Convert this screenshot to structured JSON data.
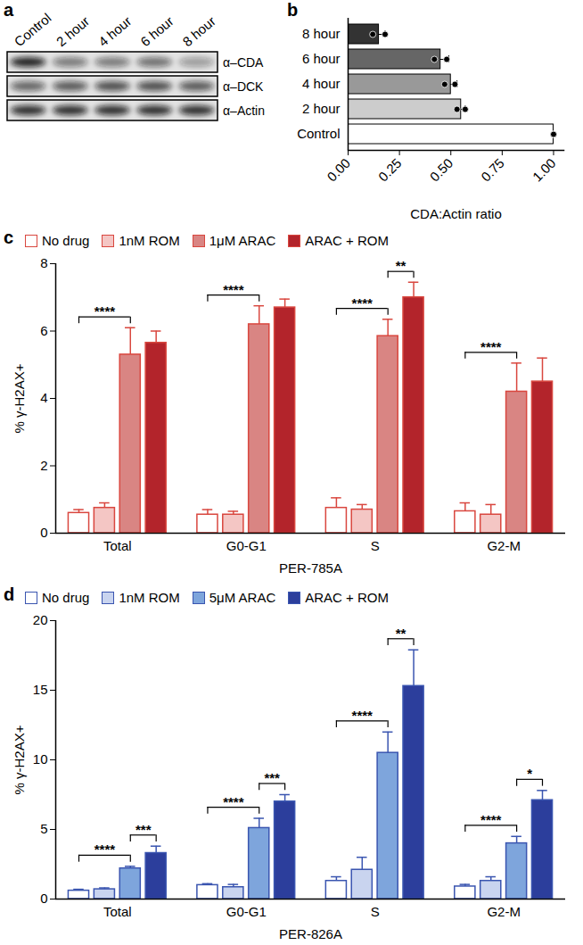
{
  "blot": {
    "panel_label": "a",
    "lanes": [
      "Control",
      "2 hour",
      "4 hour",
      "6 hour",
      "8 hour"
    ],
    "rows": [
      {
        "label": "α–CDA",
        "band_intensity": [
          0.9,
          0.5,
          0.5,
          0.55,
          0.35
        ]
      },
      {
        "label": "α–DCK",
        "band_intensity": [
          0.6,
          0.65,
          0.7,
          0.7,
          0.65
        ]
      },
      {
        "label": "α–Actin",
        "band_intensity": [
          0.85,
          0.85,
          0.85,
          0.85,
          0.85
        ]
      }
    ]
  },
  "chart_data": [
    {
      "type": "bar",
      "panel_label": "b",
      "orientation": "horizontal",
      "categories": [
        "8 hour",
        "6 hour",
        "4 hour",
        "2 hour",
        "Control"
      ],
      "values": [
        0.15,
        0.45,
        0.5,
        0.55,
        1.0
      ],
      "error": [
        0.03,
        0.04,
        0.03,
        0.02,
        0
      ],
      "points": [
        [
          0.12,
          0.18
        ],
        [
          0.42,
          0.48
        ],
        [
          0.47,
          0.52
        ],
        [
          0.53,
          0.57
        ],
        [
          1.0,
          1.0
        ]
      ],
      "colors": [
        "#333333",
        "#666666",
        "#999999",
        "#cccccc",
        "#ffffff"
      ],
      "x_label": "CDA:Actin ratio",
      "xlim": [
        0,
        1.05
      ],
      "xticks": [
        {
          "value": 0,
          "label": "0.00"
        },
        {
          "value": 0.25,
          "label": "0.25"
        },
        {
          "value": 0.5,
          "label": "0.50"
        },
        {
          "value": 0.75,
          "label": "0.75"
        },
        {
          "value": 1,
          "label": "1.00"
        }
      ]
    },
    {
      "type": "bar",
      "panel_label": "c",
      "legend": "top",
      "color": "#d9473f",
      "categories": [
        "Total",
        "G0-G1",
        "S",
        "G2-M"
      ],
      "series": [
        {
          "name": "No drug",
          "color": "#ffffff",
          "values": [
            0.6,
            0.55,
            0.75,
            0.65
          ],
          "error": [
            0.1,
            0.15,
            0.3,
            0.25
          ]
        },
        {
          "name": "1nM ROM",
          "color": "#f4c6c4",
          "values": [
            0.75,
            0.55,
            0.7,
            0.55
          ],
          "error": [
            0.15,
            0.1,
            0.15,
            0.3
          ]
        },
        {
          "name": "1μM ARAC",
          "color": "#d98583",
          "values": [
            5.3,
            6.2,
            5.85,
            4.2
          ],
          "error": [
            0.8,
            0.55,
            0.5,
            0.85
          ]
        },
        {
          "name": "ARAC + ROM",
          "color": "#b3242b",
          "values": [
            5.65,
            6.7,
            7.0,
            4.5
          ],
          "error": [
            0.35,
            0.25,
            0.45,
            0.7
          ]
        }
      ],
      "y_label": "% γ-H2AX+",
      "x_label": "PER-785A",
      "ylim": [
        0,
        8
      ],
      "yticks": [
        0,
        2,
        4,
        6,
        8
      ],
      "annotations": [
        {
          "category": "Total",
          "from": "No drug",
          "to": "1μM ARAC",
          "label": "****"
        },
        {
          "category": "G0-G1",
          "from": "No drug",
          "to": "1μM ARAC",
          "label": "****"
        },
        {
          "category": "S",
          "from": "No drug",
          "to": "1μM ARAC",
          "label": "****"
        },
        {
          "category": "S",
          "from": "1μM ARAC",
          "to": "ARAC + ROM",
          "label": "**"
        },
        {
          "category": "G2-M",
          "from": "No drug",
          "to": "1μM ARAC",
          "label": "****"
        }
      ]
    },
    {
      "type": "bar",
      "panel_label": "d",
      "legend": "top",
      "color": "#3a55b0",
      "categories": [
        "Total",
        "G0-G1",
        "S",
        "G2-M"
      ],
      "series": [
        {
          "name": "No drug",
          "color": "#ffffff",
          "values": [
            0.6,
            1.0,
            1.3,
            0.9
          ],
          "error": [
            0.1,
            0.1,
            0.3,
            0.15
          ]
        },
        {
          "name": "1nM ROM",
          "color": "#c9d4ef",
          "values": [
            0.7,
            0.85,
            2.1,
            1.3
          ],
          "error": [
            0.1,
            0.2,
            0.9,
            0.3
          ]
        },
        {
          "name": "5μM ARAC",
          "color": "#7ea5dc",
          "values": [
            2.2,
            5.1,
            10.5,
            4.0
          ],
          "error": [
            0.15,
            0.7,
            1.5,
            0.5
          ]
        },
        {
          "name": "ARAC + ROM",
          "color": "#2c3e9c",
          "values": [
            3.3,
            7.0,
            15.3,
            7.1
          ],
          "error": [
            0.5,
            0.5,
            2.6,
            0.7
          ]
        }
      ],
      "y_label": "% γ-H2AX+",
      "x_label": "PER-826A",
      "ylim": [
        0,
        20
      ],
      "yticks": [
        0,
        5,
        10,
        15,
        20
      ],
      "annotations": [
        {
          "category": "Total",
          "from": "No drug",
          "to": "5μM ARAC",
          "label": "****"
        },
        {
          "category": "Total",
          "from": "5μM ARAC",
          "to": "ARAC + ROM",
          "label": "***"
        },
        {
          "category": "G0-G1",
          "from": "No drug",
          "to": "5μM ARAC",
          "label": "****"
        },
        {
          "category": "G0-G1",
          "from": "5μM ARAC",
          "to": "ARAC + ROM",
          "label": "***"
        },
        {
          "category": "S",
          "from": "No drug",
          "to": "5μM ARAC",
          "label": "****"
        },
        {
          "category": "S",
          "from": "5μM ARAC",
          "to": "ARAC + ROM",
          "label": "**"
        },
        {
          "category": "G2-M",
          "from": "No drug",
          "to": "5μM ARAC",
          "label": "****"
        },
        {
          "category": "G2-M",
          "from": "5μM ARAC",
          "to": "ARAC + ROM",
          "label": "*"
        }
      ]
    }
  ]
}
